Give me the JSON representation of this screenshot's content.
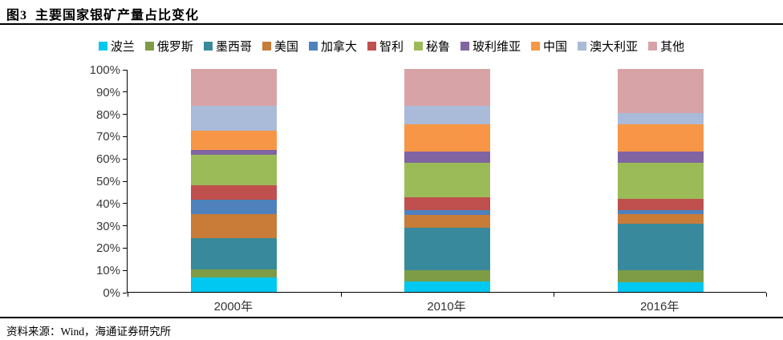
{
  "header": {
    "title": "图3  主要国家银矿产量占比变化"
  },
  "footer": {
    "source": "资料来源：Wind，海通证券研究所"
  },
  "chart_data": {
    "type": "bar",
    "stacked": true,
    "title": "主要国家银矿产量占比变化",
    "categories": [
      "2000年",
      "2010年",
      "2016年"
    ],
    "series": [
      {
        "name": "波兰",
        "color": "#00C8F0",
        "values": [
          6.6,
          4.8,
          4.4
        ]
      },
      {
        "name": "俄罗斯",
        "color": "#7D9C45",
        "values": [
          3.6,
          4.8,
          5.4
        ]
      },
      {
        "name": "墨西哥",
        "color": "#38899B",
        "values": [
          13.8,
          19.2,
          20.8
        ]
      },
      {
        "name": "美国",
        "color": "#C87C38",
        "values": [
          10.8,
          5.8,
          4.4
        ]
      },
      {
        "name": "加拿大",
        "color": "#4F81BD",
        "values": [
          6.6,
          2.2,
          1.8
        ]
      },
      {
        "name": "智利",
        "color": "#C0504D",
        "values": [
          6.6,
          5.5,
          4.9
        ]
      },
      {
        "name": "秘鲁",
        "color": "#9BBB59",
        "values": [
          13.5,
          15.5,
          16.2
        ]
      },
      {
        "name": "玻利维亚",
        "color": "#8064A2",
        "values": [
          2.3,
          5.1,
          5.1
        ]
      },
      {
        "name": "中国",
        "color": "#F79646",
        "values": [
          8.5,
          12.3,
          12.3
        ]
      },
      {
        "name": "澳大利亚",
        "color": "#AABAD9",
        "values": [
          11.1,
          8.4,
          5.1
        ]
      },
      {
        "name": "其他",
        "color": "#D8A3A6",
        "values": [
          16.6,
          16.4,
          19.6
        ]
      }
    ],
    "y_ticks": [
      "0%",
      "10%",
      "20%",
      "30%",
      "40%",
      "50%",
      "60%",
      "70%",
      "80%",
      "90%",
      "100%"
    ],
    "ylim": [
      0,
      100
    ],
    "grid": false,
    "legend_position": "top",
    "xlabel": "",
    "ylabel": ""
  }
}
